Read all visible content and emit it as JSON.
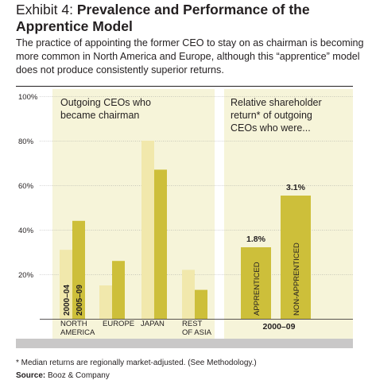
{
  "header": {
    "exhibit_label": "Exhibit 4:",
    "title": "Prevalence and Performance of the Apprentice Model",
    "subtitle": "The practice of appointing the former CEO to stay on as chairman is becoming more common in North America and Europe, although this “apprentice” model does not produce consistently superior returns."
  },
  "colors": {
    "panel_bg": "#f6f4d9",
    "series_2000_04": "#f1e8ac",
    "series_2005_09": "#cdbf3a",
    "grid": "#9a9a9a",
    "footer_bar": "#c9c8c8"
  },
  "chart_data": [
    {
      "type": "bar",
      "title": "Outgoing CEOs who became chairman",
      "ylim": [
        0,
        100
      ],
      "yticks": [
        "20%",
        "40%",
        "60%",
        "80%",
        "100%"
      ],
      "ytick_values": [
        20,
        40,
        60,
        80,
        100
      ],
      "grid": true,
      "categories": [
        "NORTH AMERICA",
        "EUROPE",
        "JAPAN",
        "REST OF ASIA"
      ],
      "category_labels": [
        [
          "NORTH",
          "AMERICA"
        ],
        [
          "EUROPE"
        ],
        [
          "JAPAN"
        ],
        [
          "REST",
          "OF ASIA"
        ]
      ],
      "series": [
        {
          "name": "2000–04",
          "values": [
            31,
            15,
            80,
            22
          ]
        },
        {
          "name": "2005–09",
          "values": [
            44,
            26,
            67,
            13
          ]
        }
      ]
    },
    {
      "type": "bar",
      "title": "Relative shareholder return* of outgoing CEOs who were...",
      "xlabel": "2000–09",
      "categories": [
        "APPRENTICED",
        "NON-APPRENTICED"
      ],
      "values": [
        1.8,
        3.1
      ],
      "data_labels": [
        "1.8%",
        "3.1%"
      ]
    }
  ],
  "footer": {
    "footnote": "* Median returns are regionally market-adjusted. (See Methodology.)",
    "source_label": "Source:",
    "source_text": "Booz & Company"
  }
}
